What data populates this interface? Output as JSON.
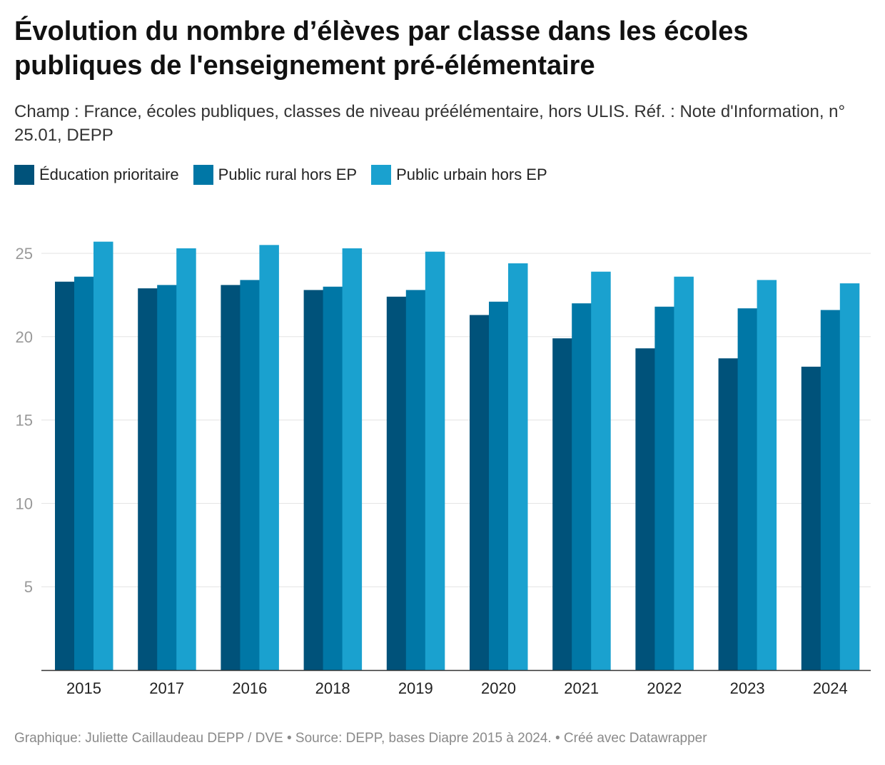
{
  "chart_data": {
    "type": "bar",
    "title": "Évolution du nombre d’élèves par classe dans les écoles publiques de l'enseignement pré-élémentaire",
    "subtitle": "Champ : France, écoles publiques, classes de niveau préélémentaire, hors ULIS. Réf. : Note d'Information, n° 25.01, DEPP",
    "categories": [
      "2015",
      "2017",
      "2016",
      "2018",
      "2019",
      "2020",
      "2021",
      "2022",
      "2023",
      "2024"
    ],
    "series": [
      {
        "name": "Éducation prioritaire",
        "color": "#00527a",
        "values": [
          23.3,
          22.9,
          23.1,
          22.8,
          22.4,
          21.3,
          19.9,
          19.3,
          18.7,
          18.2
        ]
      },
      {
        "name": "Public rural hors EP",
        "color": "#0077a6",
        "values": [
          23.6,
          23.1,
          23.4,
          23.0,
          22.8,
          22.1,
          22.0,
          21.8,
          21.7,
          21.6
        ]
      },
      {
        "name": "Public urbain hors EP",
        "color": "#1aa1cf",
        "values": [
          25.7,
          25.3,
          25.5,
          25.3,
          25.1,
          24.4,
          23.9,
          23.6,
          23.4,
          23.2
        ]
      }
    ],
    "ylim": [
      0,
      27.5
    ],
    "yticks": [
      5,
      10,
      15,
      20,
      25
    ],
    "xlabel": "",
    "ylabel": "",
    "grid": true,
    "legend": "top-left"
  },
  "footer": {
    "text": "Graphique: Juliette Caillaudeau DEPP / DVE • Source: DEPP, bases Diapre 2015 à 2024.  • Créé avec Datawrapper"
  }
}
